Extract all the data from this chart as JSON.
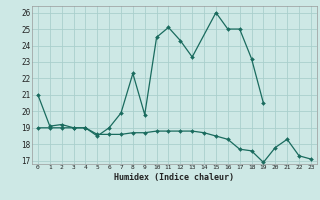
{
  "xlabel": "Humidex (Indice chaleur)",
  "bg_color": "#cde8e5",
  "grid_color": "#aacfcc",
  "line_color": "#1a6b5e",
  "xlim": [
    -0.5,
    23.5
  ],
  "ylim": [
    16.8,
    26.4
  ],
  "yticks": [
    17,
    18,
    19,
    20,
    21,
    22,
    23,
    24,
    25,
    26
  ],
  "xticks": [
    0,
    1,
    2,
    3,
    4,
    5,
    6,
    7,
    8,
    9,
    10,
    11,
    12,
    13,
    14,
    15,
    16,
    17,
    18,
    19,
    20,
    21,
    22,
    23
  ],
  "series1_x": [
    0,
    1,
    2,
    3,
    4,
    5,
    6,
    7,
    8,
    9,
    10,
    11,
    12,
    13,
    15,
    16,
    17,
    18,
    19
  ],
  "series1_y": [
    21.0,
    19.1,
    19.2,
    19.0,
    19.0,
    18.5,
    19.0,
    19.9,
    22.3,
    19.8,
    24.5,
    25.1,
    24.3,
    23.3,
    26.0,
    25.0,
    25.0,
    23.2,
    20.5
  ],
  "series2_x": [
    0,
    1,
    2,
    3,
    4,
    5,
    6,
    7,
    8,
    9,
    10,
    11,
    12,
    13,
    14,
    15,
    16,
    17,
    18,
    19,
    20,
    21,
    22,
    23
  ],
  "series2_y": [
    19.0,
    19.0,
    19.0,
    19.0,
    19.0,
    18.6,
    18.6,
    18.6,
    18.7,
    18.7,
    18.8,
    18.8,
    18.8,
    18.8,
    18.7,
    18.5,
    18.3,
    17.7,
    17.6,
    16.9,
    17.8,
    18.3,
    17.3,
    17.1
  ]
}
